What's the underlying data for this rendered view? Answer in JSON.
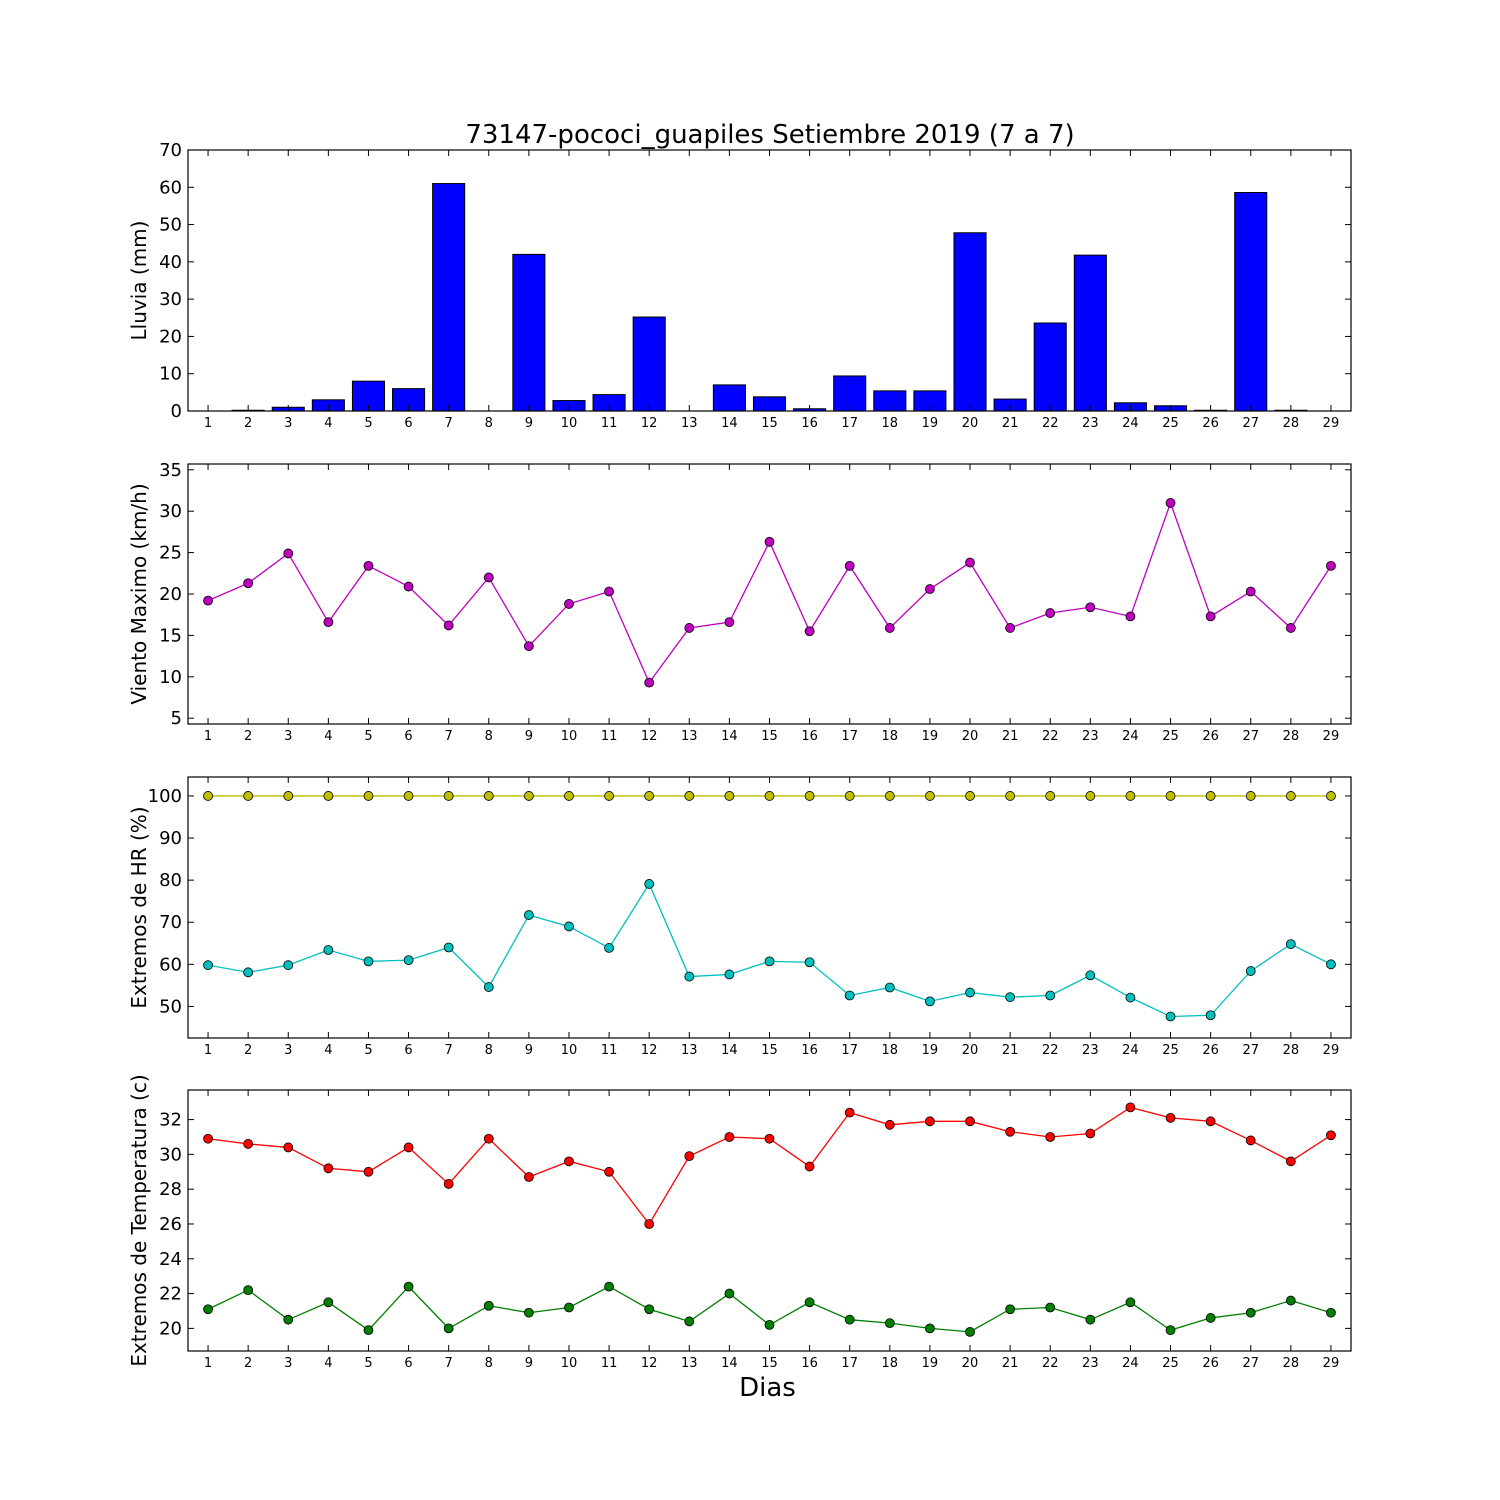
{
  "title": "73147-pococi_guapiles Setiembre 2019  (7 a 7)",
  "chart_data": [
    {
      "type": "bar",
      "ylabel": "Lluvia (mm)",
      "xlabel": "",
      "ylim": [
        0,
        70
      ],
      "yticks": [
        0,
        10,
        20,
        30,
        40,
        50,
        60,
        70
      ],
      "x": [
        1,
        2,
        3,
        4,
        5,
        6,
        7,
        8,
        9,
        10,
        11,
        12,
        13,
        14,
        15,
        16,
        17,
        18,
        19,
        20,
        21,
        22,
        23,
        24,
        25,
        26,
        27,
        28,
        29
      ],
      "series": [
        {
          "color": "#0000ff",
          "values": [
            0,
            0.2,
            1,
            3,
            8,
            6,
            61,
            0,
            42,
            2.8,
            4.4,
            25.2,
            0,
            7,
            3.8,
            0.6,
            9.4,
            5.4,
            5.4,
            47.8,
            3.2,
            23.6,
            41.8,
            2.2,
            1.4,
            0.2,
            58.6,
            0.2,
            0
          ]
        }
      ]
    },
    {
      "type": "line",
      "ylabel": "Viento Maximo (km/h)",
      "xlabel": "",
      "ylim": [
        4.3,
        35.7
      ],
      "yticks": [
        5,
        10,
        15,
        20,
        25,
        30,
        35
      ],
      "x": [
        1,
        2,
        3,
        4,
        5,
        6,
        7,
        8,
        9,
        10,
        11,
        12,
        13,
        14,
        15,
        16,
        17,
        18,
        19,
        20,
        21,
        22,
        23,
        24,
        25,
        26,
        27,
        28,
        29
      ],
      "series": [
        {
          "color": "#bf00bf",
          "values": [
            19.2,
            21.3,
            24.9,
            16.6,
            23.4,
            20.9,
            16.2,
            22,
            13.7,
            18.8,
            20.3,
            9.3,
            15.9,
            16.6,
            26.3,
            15.5,
            23.4,
            15.9,
            20.6,
            23.8,
            15.9,
            17.7,
            18.4,
            17.3,
            31,
            17.3,
            20.3,
            15.9,
            23.4
          ]
        }
      ]
    },
    {
      "type": "line",
      "ylabel": "Extremos de HR (%)",
      "xlabel": "",
      "ylim": [
        42.5,
        104.5
      ],
      "yticks": [
        50,
        60,
        70,
        80,
        90,
        100
      ],
      "x": [
        1,
        2,
        3,
        4,
        5,
        6,
        7,
        8,
        9,
        10,
        11,
        12,
        13,
        14,
        15,
        16,
        17,
        18,
        19,
        20,
        21,
        22,
        23,
        24,
        25,
        26,
        27,
        28,
        29
      ],
      "series": [
        {
          "color": "#bfbf00",
          "values": [
            100,
            100,
            100,
            100,
            100,
            100,
            100,
            100,
            100,
            100,
            100,
            100,
            100,
            100,
            100,
            100,
            100,
            100,
            100,
            100,
            100,
            100,
            100,
            100,
            100,
            100,
            100,
            100,
            100
          ]
        },
        {
          "color": "#00bfbf",
          "values": [
            59.8,
            58.1,
            59.8,
            63.4,
            60.7,
            61,
            64,
            54.6,
            71.7,
            69,
            63.9,
            79.1,
            57.1,
            57.6,
            60.7,
            60.5,
            52.6,
            54.5,
            51.2,
            53.3,
            52.2,
            52.6,
            57.4,
            52.1,
            47.6,
            47.9,
            58.4,
            64.8,
            60
          ]
        }
      ]
    },
    {
      "type": "line",
      "ylabel": "Extremos de Temperatura (c)",
      "xlabel": "Dias",
      "ylim": [
        18.7,
        33.7
      ],
      "yticks": [
        20,
        22,
        24,
        26,
        28,
        30,
        32
      ],
      "x": [
        1,
        2,
        3,
        4,
        5,
        6,
        7,
        8,
        9,
        10,
        11,
        12,
        13,
        14,
        15,
        16,
        17,
        18,
        19,
        20,
        21,
        22,
        23,
        24,
        25,
        26,
        27,
        28,
        29
      ],
      "series": [
        {
          "color": "#ff0000",
          "values": [
            30.9,
            30.6,
            30.4,
            29.2,
            29,
            30.4,
            28.3,
            30.9,
            28.7,
            29.6,
            29,
            26,
            29.9,
            31,
            30.9,
            29.3,
            32.4,
            31.7,
            31.9,
            31.9,
            31.3,
            31,
            31.2,
            32.7,
            32.1,
            31.9,
            30.8,
            29.6,
            31.1
          ]
        },
        {
          "color": "#007f00",
          "values": [
            21.1,
            22.2,
            20.5,
            21.5,
            19.9,
            22.4,
            20,
            21.3,
            20.9,
            21.2,
            22.4,
            21.1,
            20.4,
            22,
            20.2,
            21.5,
            20.5,
            20.3,
            20,
            19.8,
            21.1,
            21.2,
            20.5,
            21.5,
            19.9,
            20.6,
            20.9,
            21.6,
            20.9
          ]
        }
      ]
    }
  ]
}
